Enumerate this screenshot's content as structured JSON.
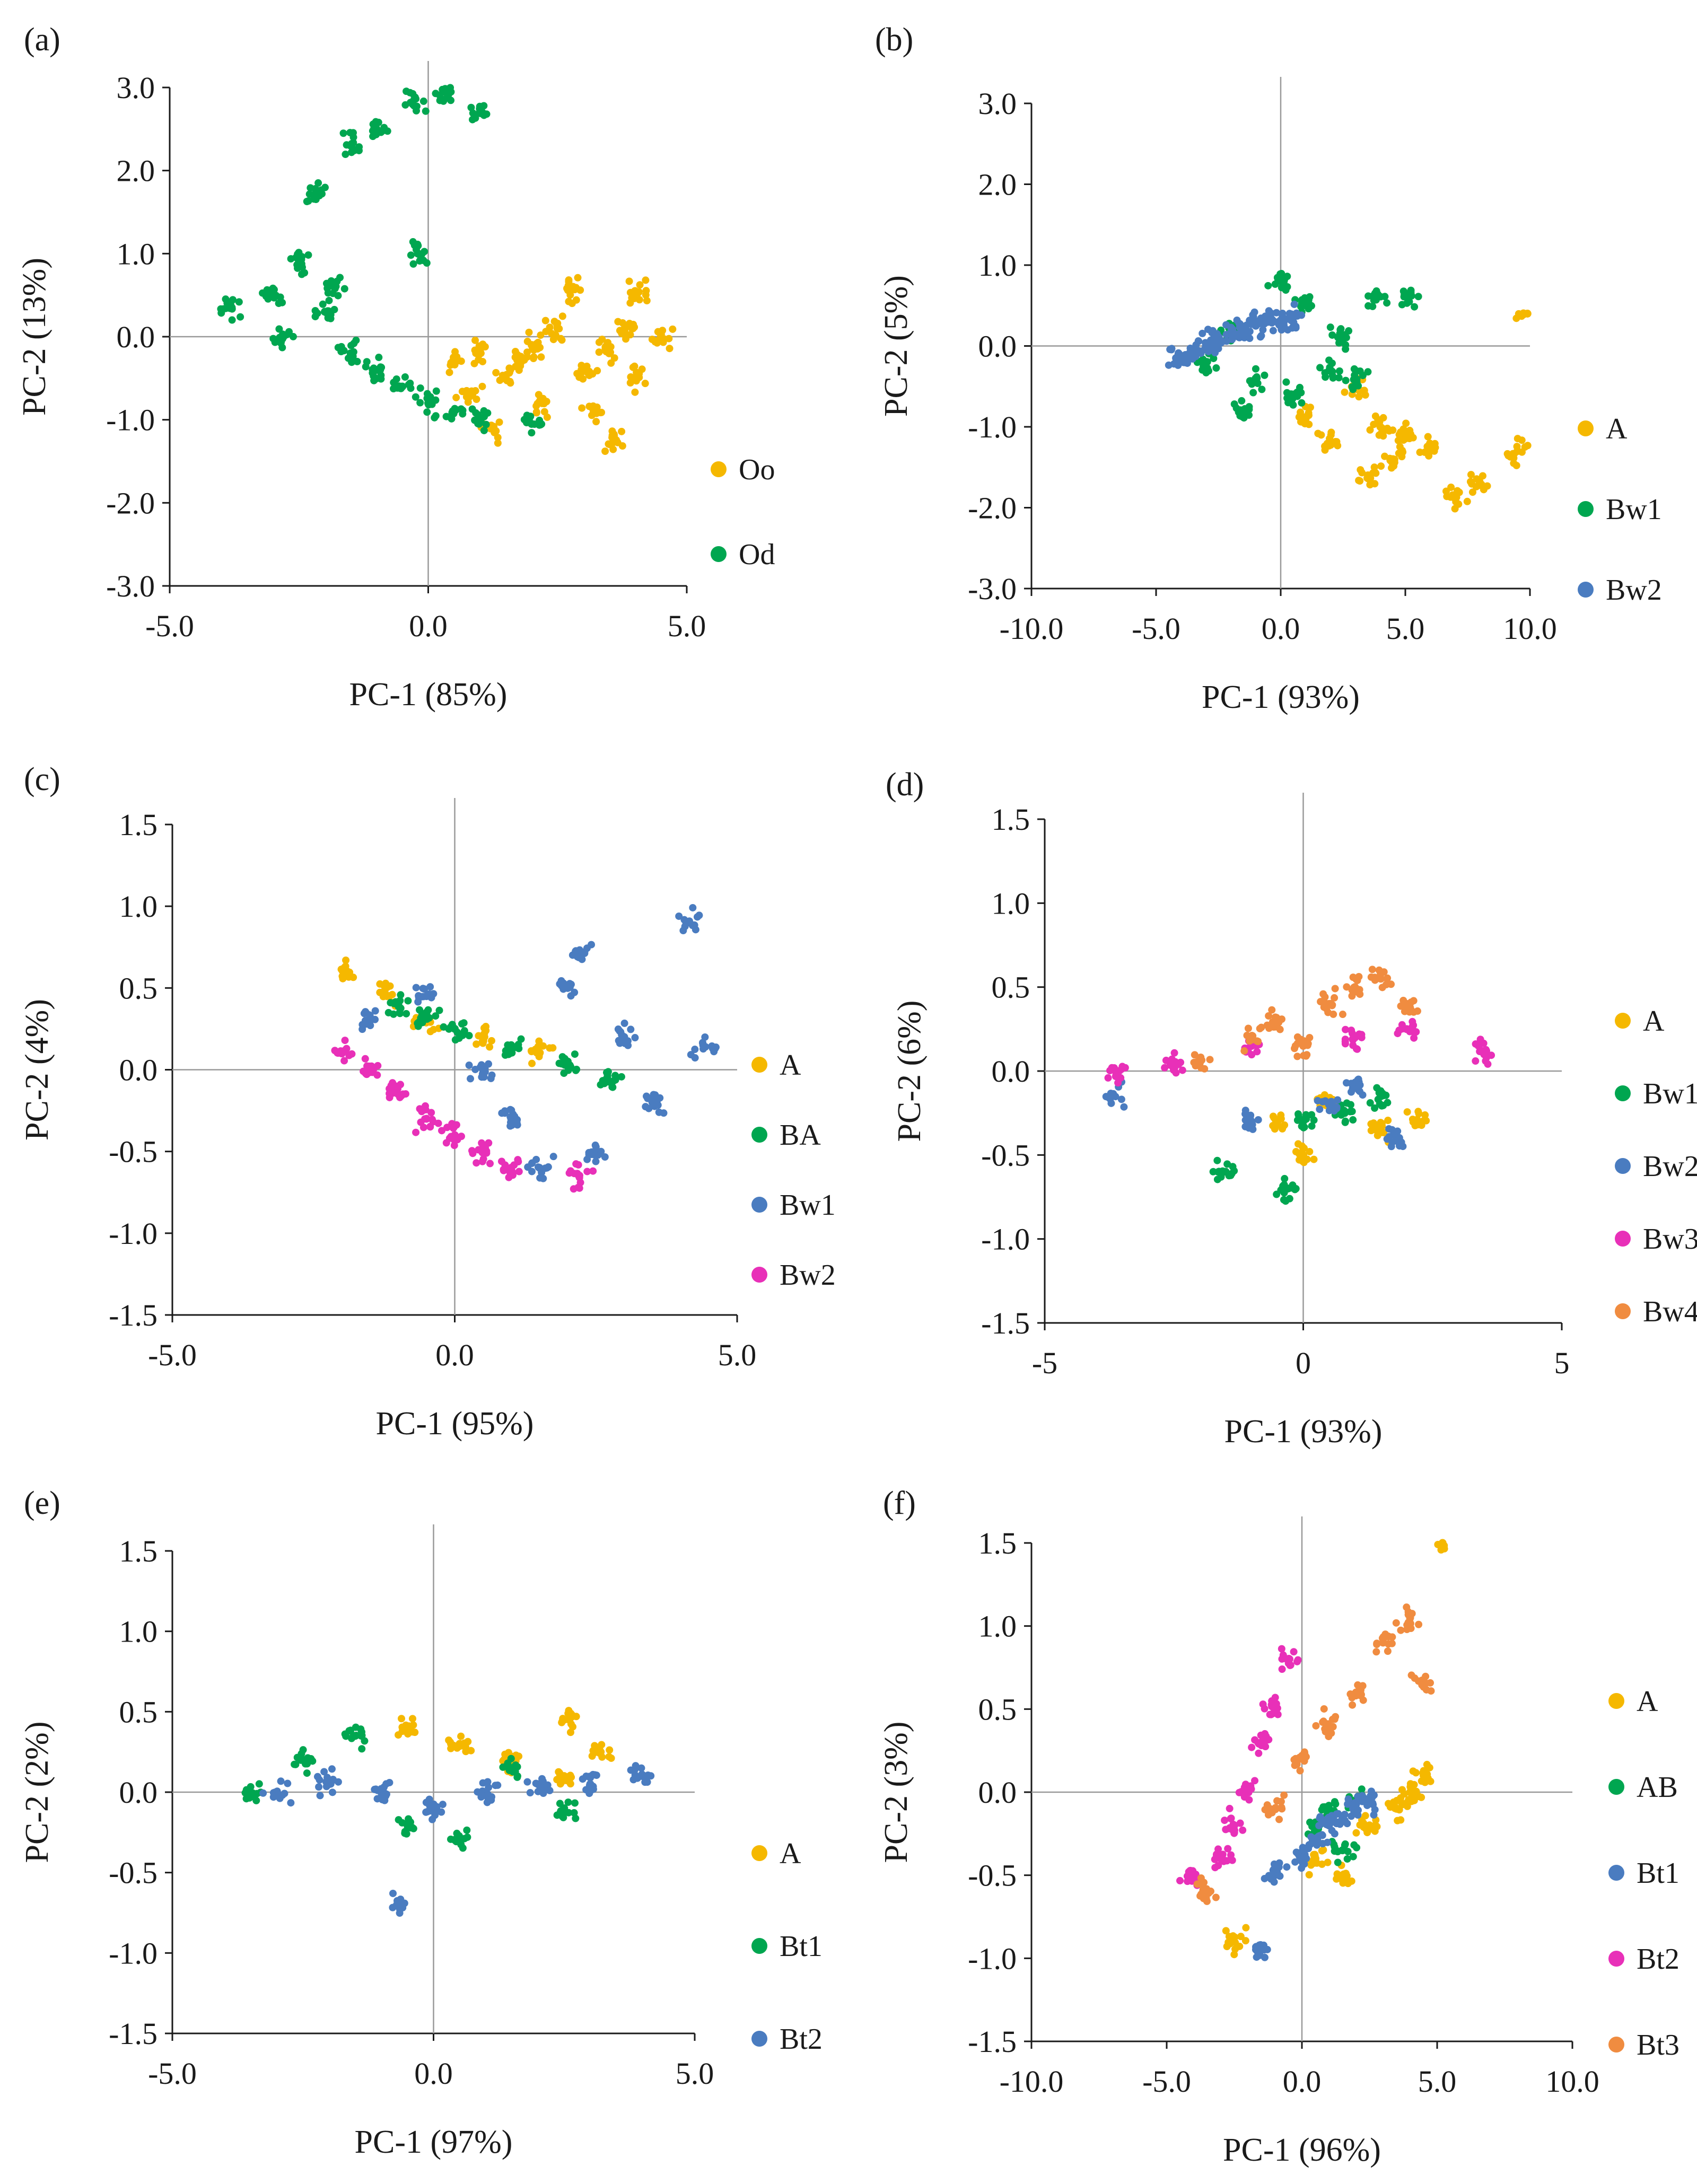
{
  "figure": {
    "description_note": "Six PCA score plots (a)-(f)"
  },
  "chart_data": [
    {
      "panel": "(a)",
      "type": "scatter",
      "xlabel": "PC-1 (85%)",
      "ylabel": "PC-2 (13%)",
      "xlim": [
        -5,
        5
      ],
      "ylim": [
        -3,
        3
      ],
      "xticks": [
        -5,
        0,
        5
      ],
      "xtick_labels": [
        "-5.0",
        "0.0",
        "5.0"
      ],
      "yticks": [
        3,
        2,
        1,
        0,
        -1,
        -2,
        -3
      ],
      "ytick_labels": [
        "3.0",
        "2.0",
        "1.0",
        "0.0",
        "-1.0",
        "-2.0",
        "-3.0"
      ],
      "series": [
        {
          "name": "Oo",
          "color": "#f5b800",
          "points": [
            [
              0.5,
              -0.3
            ],
            [
              1.0,
              -0.2
            ],
            [
              1.5,
              -0.5
            ],
            [
              2.0,
              -0.1
            ],
            [
              2.5,
              0.1
            ],
            [
              3.0,
              -0.4
            ],
            [
              3.5,
              -0.2
            ],
            [
              4.0,
              -0.5
            ],
            [
              4.5,
              0.0
            ],
            [
              2.8,
              0.6
            ],
            [
              4.0,
              0.55
            ],
            [
              3.2,
              -0.9
            ],
            [
              3.6,
              -1.25
            ],
            [
              1.2,
              -1.1
            ],
            [
              2.2,
              -0.8
            ],
            [
              1.8,
              -0.3
            ],
            [
              3.8,
              0.1
            ],
            [
              0.8,
              -0.7
            ]
          ]
        },
        {
          "name": "Od",
          "color": "#00a650",
          "points": [
            [
              -3.8,
              0.35
            ],
            [
              -3.0,
              0.5
            ],
            [
              -2.5,
              0.9
            ],
            [
              -2.0,
              0.3
            ],
            [
              -1.5,
              -0.2
            ],
            [
              -1.0,
              -0.4
            ],
            [
              -0.5,
              -0.6
            ],
            [
              0.0,
              -0.8
            ],
            [
              0.5,
              -0.9
            ],
            [
              1.0,
              -1.0
            ],
            [
              2.0,
              -1.05
            ],
            [
              -2.2,
              1.7
            ],
            [
              -1.5,
              2.3
            ],
            [
              -1.0,
              2.5
            ],
            [
              -0.3,
              2.8
            ],
            [
              0.3,
              2.95
            ],
            [
              1.0,
              2.7
            ],
            [
              -0.2,
              1.0
            ],
            [
              -2.8,
              0.0
            ],
            [
              -1.8,
              0.6
            ]
          ]
        }
      ]
    },
    {
      "panel": "(b)",
      "type": "scatter",
      "xlabel": "PC-1 (93%)",
      "ylabel": "PC-2 (5%)",
      "xlim": [
        -10,
        10
      ],
      "ylim": [
        -3,
        3
      ],
      "xticks": [
        -10,
        -5,
        0,
        5,
        10
      ],
      "xtick_labels": [
        "-10.0",
        "-5.0",
        "0.0",
        "5.0",
        "10.0"
      ],
      "yticks": [
        3,
        2,
        1,
        0,
        -1,
        -2,
        -3
      ],
      "ytick_labels": [
        "3.0",
        "2.0",
        "1.0",
        "0.0",
        "-1.0",
        "-2.0",
        "-3.0"
      ],
      "series": [
        {
          "name": "A",
          "color": "#f5b800",
          "points": [
            [
              1.0,
              -0.9
            ],
            [
              2.0,
              -1.2
            ],
            [
              3.5,
              -1.6
            ],
            [
              4.5,
              -1.4
            ],
            [
              5.0,
              -1.1
            ],
            [
              6.0,
              -1.3
            ],
            [
              7.0,
              -1.85
            ],
            [
              8.0,
              -1.7
            ],
            [
              9.5,
              -1.3
            ],
            [
              9.9,
              0.4
            ],
            [
              3.0,
              -0.5
            ],
            [
              4.0,
              -1.0
            ]
          ]
        },
        {
          "name": "Bw1",
          "color": "#00a650",
          "points": [
            [
              -3.0,
              -0.2
            ],
            [
              -2.0,
              0.2
            ],
            [
              -1.0,
              -0.4
            ],
            [
              0.0,
              0.8
            ],
            [
              1.0,
              0.5
            ],
            [
              2.0,
              -0.3
            ],
            [
              3.0,
              -0.4
            ],
            [
              3.8,
              0.6
            ],
            [
              5.1,
              0.6
            ],
            [
              -1.5,
              -0.8
            ],
            [
              0.5,
              -0.6
            ],
            [
              2.5,
              0.1
            ]
          ]
        },
        {
          "name": "Bw2",
          "color": "#4a7cc0",
          "points": [
            [
              -4.2,
              -0.15
            ],
            [
              -3.5,
              -0.1
            ],
            [
              -3.0,
              0.0
            ],
            [
              -2.5,
              0.1
            ],
            [
              -2.0,
              0.15
            ],
            [
              -1.5,
              0.2
            ],
            [
              -1.0,
              0.25
            ],
            [
              -0.5,
              0.3
            ],
            [
              0.0,
              0.3
            ],
            [
              0.5,
              0.35
            ]
          ]
        }
      ]
    },
    {
      "panel": "(c)",
      "type": "scatter",
      "xlabel": "PC-1 (95%)",
      "ylabel": "PC-2 (4%)",
      "xlim": [
        -5,
        5
      ],
      "ylim": [
        -1.5,
        1.5
      ],
      "xticks": [
        -5,
        0,
        5
      ],
      "xtick_labels": [
        "-5.0",
        "0.0",
        "5.0"
      ],
      "yticks": [
        1.5,
        1.0,
        0.5,
        0.0,
        -0.5,
        -1.0,
        -1.5
      ],
      "ytick_labels": [
        "1.5",
        "1.0",
        "0.5",
        "0.0",
        "-0.5",
        "-1.0",
        "-1.5"
      ],
      "series": [
        {
          "name": "A",
          "color": "#f5b800",
          "points": [
            [
              -1.9,
              0.6
            ],
            [
              -1.2,
              0.45
            ],
            [
              -0.5,
              0.3
            ],
            [
              0.5,
              0.2
            ],
            [
              1.5,
              0.1
            ]
          ]
        },
        {
          "name": "BA",
          "color": "#00a650",
          "points": [
            [
              -1.0,
              0.4
            ],
            [
              -0.5,
              0.35
            ],
            [
              0.0,
              0.25
            ],
            [
              1.0,
              0.15
            ],
            [
              2.0,
              0.05
            ],
            [
              2.7,
              -0.05
            ]
          ]
        },
        {
          "name": "Bw1",
          "color": "#4a7cc0",
          "points": [
            [
              -1.5,
              0.3
            ],
            [
              -0.5,
              0.45
            ],
            [
              0.5,
              0.0
            ],
            [
              1.0,
              -0.3
            ],
            [
              2.0,
              0.5
            ],
            [
              2.2,
              0.7
            ],
            [
              3.0,
              0.2
            ],
            [
              3.5,
              -0.2
            ],
            [
              4.1,
              0.9
            ],
            [
              4.4,
              0.15
            ],
            [
              2.5,
              -0.5
            ],
            [
              1.5,
              -0.6
            ]
          ]
        },
        {
          "name": "Bw2",
          "color": "#e830b8",
          "points": [
            [
              -2.0,
              0.1
            ],
            [
              -1.5,
              0.0
            ],
            [
              -1.0,
              -0.15
            ],
            [
              -0.5,
              -0.3
            ],
            [
              0.0,
              -0.4
            ],
            [
              0.5,
              -0.5
            ],
            [
              1.0,
              -0.6
            ],
            [
              2.2,
              -0.65
            ]
          ]
        }
      ]
    },
    {
      "panel": "(d)",
      "type": "scatter",
      "xlabel": "PC-1 (93%)",
      "ylabel": "PC-2 (6%)",
      "xlim": [
        -5,
        5
      ],
      "ylim": [
        -1.5,
        1.5
      ],
      "xticks": [
        -5,
        0,
        5
      ],
      "xtick_labels": [
        "-5",
        "0",
        "5"
      ],
      "yticks": [
        1.5,
        1.0,
        0.5,
        0.0,
        -0.5,
        -1.0,
        -1.5
      ],
      "ytick_labels": [
        "1.5",
        "1.0",
        "0.5",
        "0.0",
        "-0.5",
        "-1.0",
        "-1.5"
      ],
      "series": [
        {
          "name": "A",
          "color": "#f5b800",
          "points": [
            [
              -0.5,
              -0.3
            ],
            [
              0.5,
              -0.2
            ],
            [
              1.5,
              -0.35
            ],
            [
              2.2,
              -0.3
            ],
            [
              0.0,
              -0.5
            ]
          ]
        },
        {
          "name": "Bw1",
          "color": "#00a650",
          "points": [
            [
              -1.5,
              -0.6
            ],
            [
              -0.3,
              -0.7
            ],
            [
              0.0,
              -0.3
            ],
            [
              0.8,
              -0.25
            ],
            [
              1.5,
              -0.15
            ]
          ]
        },
        {
          "name": "Bw2",
          "color": "#4a7cc0",
          "points": [
            [
              -3.7,
              -0.15
            ],
            [
              -1.0,
              -0.3
            ],
            [
              0.5,
              -0.2
            ],
            [
              1.0,
              -0.1
            ],
            [
              1.8,
              -0.4
            ]
          ]
        },
        {
          "name": "Bw3",
          "color": "#e830b8",
          "points": [
            [
              -3.6,
              0.0
            ],
            [
              -2.5,
              0.05
            ],
            [
              -1.0,
              0.15
            ],
            [
              1.0,
              0.2
            ],
            [
              2.0,
              0.25
            ],
            [
              3.5,
              0.1
            ]
          ]
        },
        {
          "name": "Bw4",
          "color": "#f08c40",
          "points": [
            [
              -2.0,
              0.05
            ],
            [
              -1.0,
              0.2
            ],
            [
              -0.5,
              0.3
            ],
            [
              0.0,
              0.15
            ],
            [
              0.5,
              0.4
            ],
            [
              1.0,
              0.5
            ],
            [
              1.5,
              0.55
            ],
            [
              2.0,
              0.4
            ]
          ]
        }
      ]
    },
    {
      "panel": "(e)",
      "type": "scatter",
      "xlabel": "PC-1 (97%)",
      "ylabel": "PC-2 (2%)",
      "xlim": [
        -5,
        5
      ],
      "ylim": [
        -1.5,
        1.5
      ],
      "xticks": [
        -5,
        0,
        5
      ],
      "xtick_labels": [
        "-5.0",
        "0.0",
        "5.0"
      ],
      "yticks": [
        1.5,
        1.0,
        0.5,
        0.0,
        -0.5,
        -1.0,
        -1.5
      ],
      "ytick_labels": [
        "1.5",
        "1.0",
        "0.5",
        "0.0",
        "-0.5",
        "-1.0",
        "-1.5"
      ],
      "series": [
        {
          "name": "A",
          "color": "#f5b800",
          "points": [
            [
              -0.5,
              0.4
            ],
            [
              0.5,
              0.3
            ],
            [
              1.5,
              0.2
            ],
            [
              2.5,
              0.1
            ],
            [
              2.6,
              0.45
            ],
            [
              3.2,
              0.25
            ]
          ]
        },
        {
          "name": "Bt1",
          "color": "#00a650",
          "points": [
            [
              -3.5,
              0.0
            ],
            [
              -2.5,
              0.2
            ],
            [
              -1.5,
              0.35
            ],
            [
              -0.5,
              -0.2
            ],
            [
              0.5,
              -0.3
            ],
            [
              1.5,
              0.15
            ],
            [
              2.5,
              -0.1
            ]
          ]
        },
        {
          "name": "Bt2",
          "color": "#4a7cc0",
          "points": [
            [
              -3.0,
              0.0
            ],
            [
              -2.0,
              0.05
            ],
            [
              -1.0,
              0.0
            ],
            [
              0.0,
              -0.1
            ],
            [
              1.0,
              0.0
            ],
            [
              2.0,
              0.05
            ],
            [
              3.0,
              0.05
            ],
            [
              4.0,
              0.1
            ],
            [
              -0.7,
              -0.7
            ]
          ]
        }
      ]
    },
    {
      "panel": "(f)",
      "type": "scatter",
      "xlabel": "PC-1 (96%)",
      "ylabel": "PC-2 (3%)",
      "xlim": [
        -10,
        10
      ],
      "ylim": [
        -1.5,
        1.5
      ],
      "xticks": [
        -10,
        -5,
        0,
        5,
        10
      ],
      "xtick_labels": [
        "-10.0",
        "-5.0",
        "0.0",
        "5.0",
        "10.0"
      ],
      "yticks": [
        1.5,
        1.0,
        0.5,
        0.0,
        -0.5,
        -1.0,
        -1.5
      ],
      "ytick_labels": [
        "1.5",
        "1.0",
        "0.5",
        "0.0",
        "-0.5",
        "-1.0",
        "-1.5"
      ],
      "series": [
        {
          "name": "A",
          "color": "#f5b800",
          "points": [
            [
              -2.5,
              -0.9
            ],
            [
              0.5,
              -0.4
            ],
            [
              1.5,
              -0.5
            ],
            [
              2.5,
              -0.2
            ],
            [
              3.5,
              -0.1
            ],
            [
              4.5,
              0.1
            ],
            [
              5.2,
              1.5
            ],
            [
              4.0,
              0.0
            ]
          ]
        },
        {
          "name": "AB",
          "color": "#00a650",
          "points": [
            [
              0.5,
              -0.2
            ],
            [
              1.0,
              -0.1
            ],
            [
              2.0,
              -0.05
            ],
            [
              1.5,
              -0.35
            ]
          ]
        },
        {
          "name": "Bt1",
          "color": "#4a7cc0",
          "points": [
            [
              -1.0,
              -0.5
            ],
            [
              0.0,
              -0.4
            ],
            [
              0.5,
              -0.3
            ],
            [
              1.0,
              -0.2
            ],
            [
              1.5,
              -0.15
            ],
            [
              2.0,
              -0.1
            ],
            [
              2.5,
              -0.05
            ],
            [
              -1.5,
              -0.95
            ]
          ]
        },
        {
          "name": "Bt2",
          "color": "#e830b8",
          "points": [
            [
              -4.0,
              -0.5
            ],
            [
              -3.0,
              -0.4
            ],
            [
              -2.0,
              0.0
            ],
            [
              -1.5,
              0.3
            ],
            [
              -1.0,
              0.5
            ],
            [
              -0.5,
              0.8
            ],
            [
              -2.5,
              -0.2
            ]
          ]
        },
        {
          "name": "Bt3",
          "color": "#f08c40",
          "points": [
            [
              -1.0,
              -0.1
            ],
            [
              0.0,
              0.2
            ],
            [
              1.0,
              0.4
            ],
            [
              2.0,
              0.6
            ],
            [
              3.0,
              0.9
            ],
            [
              4.0,
              1.05
            ],
            [
              4.5,
              0.65
            ],
            [
              -3.5,
              -0.6
            ]
          ]
        }
      ]
    }
  ]
}
